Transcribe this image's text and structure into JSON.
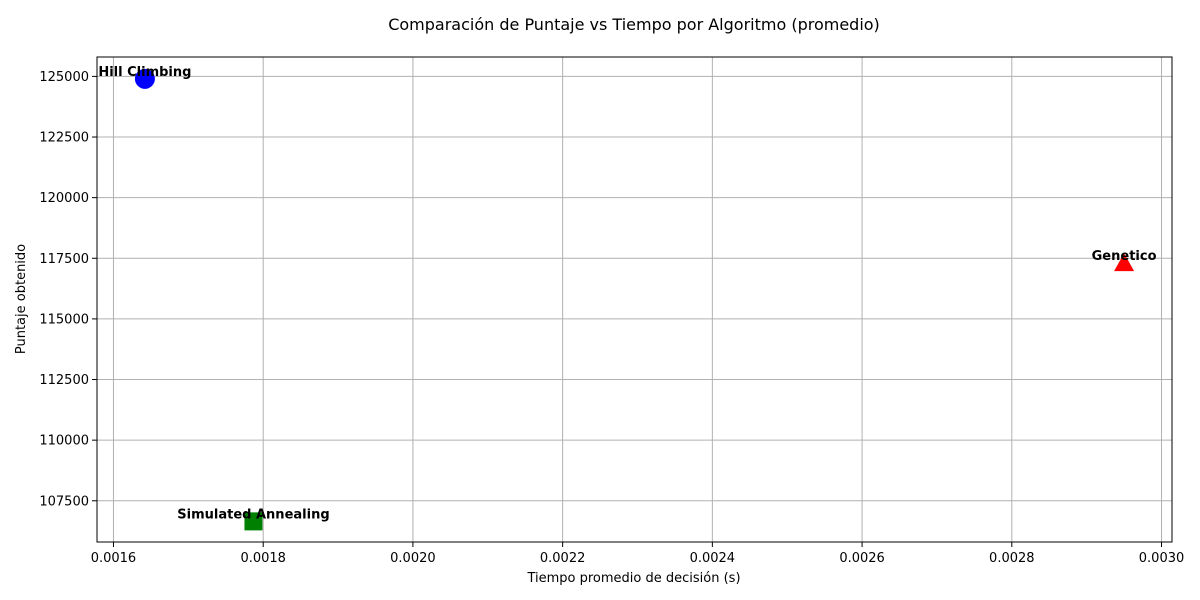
{
  "chart_data": {
    "type": "scatter",
    "title": "Comparación de Puntaje vs Tiempo por Algoritmo (promedio)",
    "xlabel": "Tiempo promedio de decisión (s)",
    "ylabel": "Puntaje obtenido",
    "xlim": [
      0.001578,
      0.003014
    ],
    "ylim": [
      105800,
      125800
    ],
    "x_ticks": [
      0.0016,
      0.0018,
      0.002,
      0.0022,
      0.0024,
      0.0026,
      0.0028,
      0.003
    ],
    "x_tick_labels": [
      "0.0016",
      "0.0018",
      "0.0020",
      "0.0022",
      "0.0024",
      "0.0026",
      "0.0028",
      "0.0030"
    ],
    "y_ticks": [
      107500,
      110000,
      112500,
      115000,
      117500,
      120000,
      122500,
      125000
    ],
    "y_tick_labels": [
      "107500",
      "110000",
      "112500",
      "115000",
      "117500",
      "120000",
      "122500",
      "125000"
    ],
    "grid": true,
    "points": [
      {
        "label": "Hill Climbing",
        "x": 0.001642,
        "y": 124900,
        "marker": "circle",
        "color": "#0000ff"
      },
      {
        "label": "Simulated Annealing",
        "x": 0.001787,
        "y": 106650,
        "marker": "square",
        "color": "#008000"
      },
      {
        "label": "Genetico",
        "x": 0.00295,
        "y": 117300,
        "marker": "triangle",
        "color": "#ff0000"
      }
    ]
  }
}
